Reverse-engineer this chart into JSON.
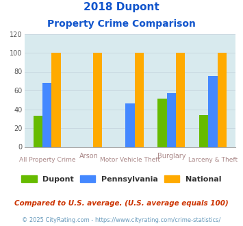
{
  "title_line1": "2018 Dupont",
  "title_line2": "Property Crime Comparison",
  "categories": [
    "All Property Crime",
    "Arson",
    "Motor Vehicle Theft",
    "Burglary",
    "Larceny & Theft"
  ],
  "dupont": [
    33,
    0,
    0,
    51,
    34
  ],
  "pennsylvania": [
    68,
    0,
    46,
    57,
    75
  ],
  "national": [
    100,
    100,
    100,
    100,
    100
  ],
  "dupont_color": "#66bb00",
  "pennsylvania_color": "#4488ff",
  "national_color": "#ffaa00",
  "ylim": [
    0,
    120
  ],
  "yticks": [
    0,
    20,
    40,
    60,
    80,
    100,
    120
  ],
  "grid_color": "#c8d8e0",
  "plot_bg": "#d8eaee",
  "title_color": "#1155cc",
  "xlabel_row1_positions": [
    1,
    3
  ],
  "xlabel_row1_labels": [
    "Arson",
    "Burglary"
  ],
  "xlabel_row2_positions": [
    0,
    2,
    4
  ],
  "xlabel_row2_labels": [
    "All Property Crime",
    "Motor Vehicle Theft",
    "Larceny & Theft"
  ],
  "xlabel_color": "#aa8888",
  "legend_labels": [
    "Dupont",
    "Pennsylvania",
    "National"
  ],
  "legend_label_color": "#333333",
  "footnote1": "Compared to U.S. average. (U.S. average equals 100)",
  "footnote2": "© 2025 CityRating.com - https://www.cityrating.com/crime-statistics/",
  "footnote1_color": "#cc3300",
  "footnote2_color": "#6699bb",
  "bar_width": 0.22
}
